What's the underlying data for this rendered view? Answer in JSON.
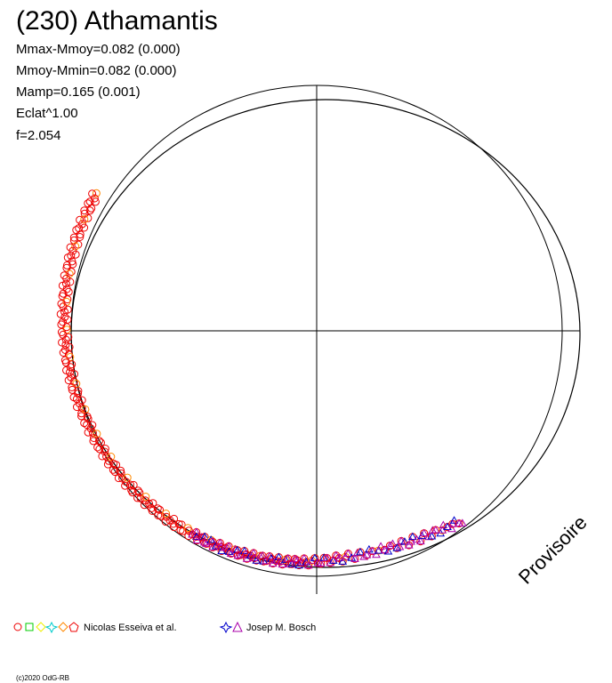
{
  "title": "(230) Athamantis",
  "stats": [
    "Mmax-Mmoy=0.082 (0.000)",
    "Mmoy-Mmin=0.082 (0.000)",
    "Mamp=0.165 (0.001)",
    "Eclat^1.00",
    "f=2.054"
  ],
  "legend": [
    {
      "name": "Nicolas Esseiva et al."
    },
    {
      "name": "Josep M. Bosch"
    }
  ],
  "watermark": "Provisoire",
  "copyright": "(c)2020 OdG-RB"
}
